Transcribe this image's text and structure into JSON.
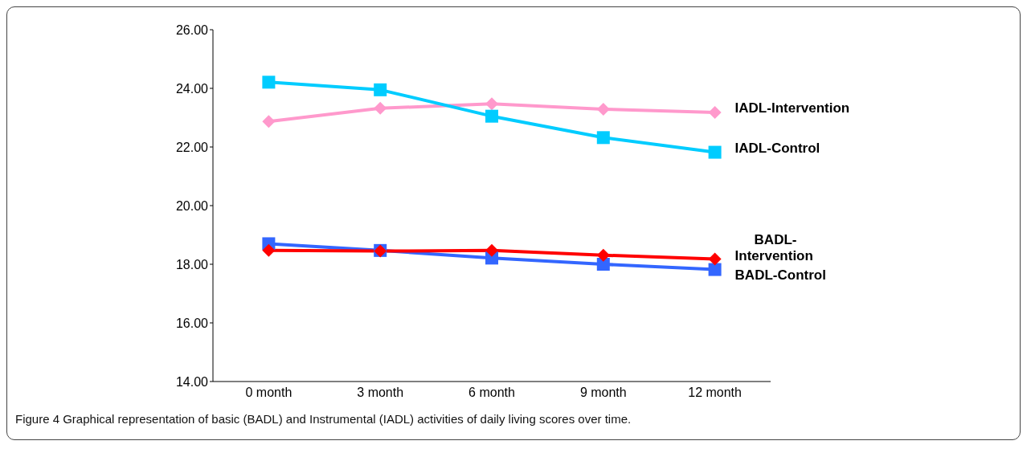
{
  "chart_data": {
    "type": "line",
    "categories": [
      "0 month",
      "3 month",
      "6 month",
      "9 month",
      "12 month"
    ],
    "ylim": [
      14,
      26
    ],
    "yticks": [
      {
        "value": 14,
        "label": "14.00"
      },
      {
        "value": 16,
        "label": "16.00"
      },
      {
        "value": 18,
        "label": "18.00"
      },
      {
        "value": 20,
        "label": "20.00"
      },
      {
        "value": 22,
        "label": "22.00"
      },
      {
        "value": 24,
        "label": "24.00"
      },
      {
        "value": 26,
        "label": "26.00"
      }
    ],
    "grid": false,
    "legend": false,
    "series": [
      {
        "name": "IADL-Intervention",
        "color": "#ff99cc",
        "marker": "diamond",
        "values": [
          22.87,
          23.32,
          23.47,
          23.29,
          23.18
        ]
      },
      {
        "name": "IADL-Control",
        "color": "#00ccff",
        "marker": "square",
        "values": [
          24.21,
          23.95,
          23.05,
          22.32,
          21.82
        ]
      },
      {
        "name": "BADL-Control",
        "color": "#3366ff",
        "marker": "square",
        "values": [
          18.7,
          18.47,
          18.21,
          18.0,
          17.82
        ]
      },
      {
        "name": "BADL-Intervention",
        "color": "#ff0000",
        "marker": "diamond",
        "values": [
          18.47,
          18.45,
          18.47,
          18.31,
          18.18
        ]
      }
    ],
    "annotations": [
      "Figure 4 Graphical representation of basic (BADL) and Instrumental (IADL) activities of daily living scores over time."
    ]
  }
}
